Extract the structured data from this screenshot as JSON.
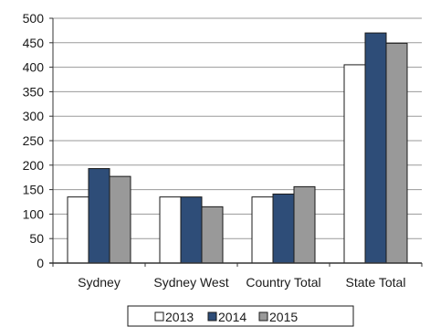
{
  "chart_data": {
    "type": "bar",
    "title": "",
    "xlabel": "",
    "ylabel": "",
    "categories": [
      "Sydney",
      "Sydney West",
      "Country Total",
      "State Total"
    ],
    "series": [
      {
        "name": "2013",
        "color": "#ffffff",
        "values": [
          135,
          135,
          135,
          405
        ]
      },
      {
        "name": "2014",
        "color": "#2e4d78",
        "values": [
          193,
          135,
          141,
          470
        ]
      },
      {
        "name": "2015",
        "color": "#999999",
        "values": [
          177,
          115,
          156,
          449
        ]
      }
    ],
    "ylim": [
      0,
      500
    ],
    "yticks": [
      0,
      50,
      100,
      150,
      200,
      250,
      300,
      350,
      400,
      450,
      500
    ],
    "grid": true,
    "legend_position": "bottom"
  }
}
